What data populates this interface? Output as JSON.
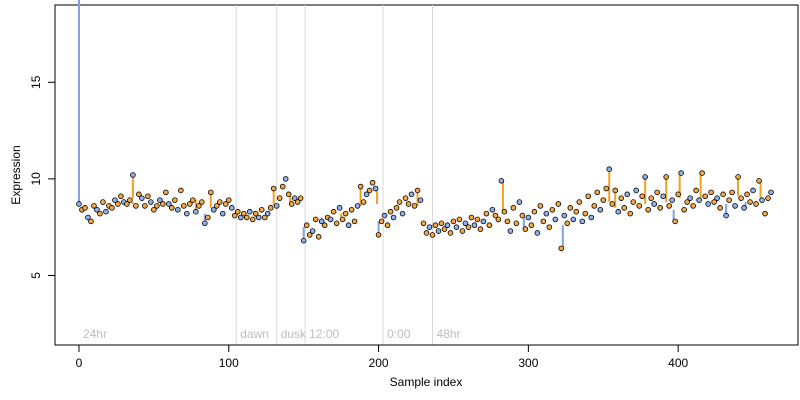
{
  "chart_data": {
    "type": "scatter",
    "title": "",
    "xlabel": "Sample index",
    "ylabel": "Expression",
    "xlim": [
      -16,
      480
    ],
    "ylim": [
      1.4,
      19.0
    ],
    "xticks": [
      0,
      100,
      200,
      300,
      400
    ],
    "yticks": [
      5,
      10,
      15
    ],
    "grid": false,
    "legend": "none",
    "colors": {
      "point_fill_orange": "#f4a742",
      "point_fill_blue": "#8fb0e8",
      "orange_segment": "#f0a020",
      "blue_segment": "#7fa3e0",
      "event_line": "#d9d9d9",
      "event_text": "#bdbdbd"
    },
    "events": [
      {
        "label": "24hr",
        "x": 0
      },
      {
        "label": "dawn",
        "x": 105
      },
      {
        "label": "dusk",
        "x": 132
      },
      {
        "label": "12:00",
        "x": 151
      },
      {
        "label": "0:00",
        "x": 203
      },
      {
        "label": "48hr",
        "x": 236
      }
    ],
    "segments": [
      [
        0,
        8.6,
        36
      ],
      [
        36,
        8.8,
        8.7
      ],
      [
        36,
        10.2,
        9.0
      ],
      [
        78,
        8.9,
        8.3
      ],
      [
        84,
        7.7,
        8.2
      ],
      [
        88,
        9.3,
        8.5
      ],
      [
        118,
        8.2,
        8.0
      ],
      [
        130,
        9.5,
        8.6
      ],
      [
        141,
        9.2,
        8.7
      ],
      [
        150,
        6.8,
        7.5
      ],
      [
        162,
        7.8,
        8.0
      ],
      [
        175,
        8.2,
        8.0
      ],
      [
        188,
        9.6,
        8.6
      ],
      [
        199,
        9.6,
        8.7
      ],
      [
        200,
        7.1,
        7.8
      ],
      [
        226,
        9.4,
        8.6
      ],
      [
        283,
        9.9,
        8.4
      ],
      [
        297,
        7.4,
        8.0
      ],
      [
        323,
        6.4,
        7.6
      ],
      [
        354,
        10.5,
        8.8
      ],
      [
        358,
        9.4,
        8.5
      ],
      [
        378,
        10.1,
        8.7
      ],
      [
        392,
        10.1,
        8.8
      ],
      [
        397,
        7.8,
        8.4
      ],
      [
        401,
        10.3,
        9.0
      ],
      [
        415,
        10.3,
        9.0
      ],
      [
        432,
        8.1,
        8.7
      ],
      [
        440,
        10.1,
        9.1
      ],
      [
        445,
        8.5,
        8.8
      ],
      [
        455,
        9.9,
        9.0
      ]
    ],
    "points": [
      [
        0,
        8.7
      ],
      [
        2,
        8.4
      ],
      [
        4,
        8.5
      ],
      [
        6,
        8.0
      ],
      [
        8,
        7.8
      ],
      [
        10,
        8.6
      ],
      [
        12,
        8.4
      ],
      [
        14,
        8.2
      ],
      [
        16,
        8.8
      ],
      [
        18,
        8.3
      ],
      [
        20,
        8.6
      ],
      [
        22,
        8.5
      ],
      [
        24,
        8.9
      ],
      [
        26,
        8.7
      ],
      [
        28,
        9.1
      ],
      [
        30,
        8.8
      ],
      [
        32,
        8.7
      ],
      [
        34,
        8.9
      ],
      [
        36,
        10.2
      ],
      [
        38,
        8.6
      ],
      [
        40,
        9.2
      ],
      [
        42,
        9.0
      ],
      [
        44,
        8.6
      ],
      [
        46,
        9.1
      ],
      [
        48,
        8.8
      ],
      [
        50,
        8.4
      ],
      [
        52,
        8.6
      ],
      [
        54,
        8.9
      ],
      [
        56,
        8.7
      ],
      [
        58,
        9.3
      ],
      [
        60,
        8.7
      ],
      [
        62,
        8.5
      ],
      [
        64,
        8.9
      ],
      [
        66,
        8.4
      ],
      [
        68,
        9.4
      ],
      [
        70,
        8.6
      ],
      [
        72,
        8.2
      ],
      [
        74,
        8.7
      ],
      [
        76,
        8.9
      ],
      [
        78,
        8.3
      ],
      [
        80,
        8.6
      ],
      [
        82,
        8.8
      ],
      [
        84,
        7.7
      ],
      [
        86,
        8.0
      ],
      [
        88,
        9.3
      ],
      [
        90,
        8.4
      ],
      [
        92,
        8.6
      ],
      [
        94,
        8.8
      ],
      [
        96,
        8.2
      ],
      [
        98,
        8.7
      ],
      [
        100,
        8.9
      ],
      [
        102,
        8.5
      ],
      [
        104,
        8.1
      ],
      [
        106,
        8.3
      ],
      [
        108,
        8.0
      ],
      [
        110,
        8.2
      ],
      [
        112,
        8.0
      ],
      [
        114,
        8.3
      ],
      [
        116,
        7.9
      ],
      [
        118,
        8.2
      ],
      [
        120,
        8.0
      ],
      [
        122,
        8.4
      ],
      [
        124,
        8.0
      ],
      [
        126,
        8.2
      ],
      [
        128,
        8.5
      ],
      [
        130,
        9.5
      ],
      [
        132,
        8.6
      ],
      [
        134,
        9.0
      ],
      [
        136,
        9.6
      ],
      [
        138,
        10.0
      ],
      [
        140,
        9.2
      ],
      [
        142,
        8.7
      ],
      [
        144,
        9.0
      ],
      [
        146,
        8.8
      ],
      [
        148,
        9.0
      ],
      [
        150,
        6.8
      ],
      [
        152,
        7.6
      ],
      [
        154,
        7.1
      ],
      [
        156,
        7.3
      ],
      [
        158,
        7.9
      ],
      [
        160,
        7.0
      ],
      [
        162,
        7.8
      ],
      [
        164,
        7.6
      ],
      [
        166,
        8.0
      ],
      [
        168,
        7.9
      ],
      [
        170,
        8.3
      ],
      [
        172,
        7.7
      ],
      [
        174,
        8.5
      ],
      [
        176,
        7.9
      ],
      [
        178,
        8.2
      ],
      [
        180,
        7.6
      ],
      [
        182,
        8.4
      ],
      [
        184,
        7.8
      ],
      [
        186,
        8.6
      ],
      [
        188,
        9.6
      ],
      [
        190,
        8.8
      ],
      [
        192,
        9.2
      ],
      [
        194,
        9.4
      ],
      [
        196,
        9.8
      ],
      [
        198,
        9.5
      ],
      [
        200,
        7.1
      ],
      [
        202,
        7.8
      ],
      [
        204,
        8.1
      ],
      [
        206,
        7.6
      ],
      [
        208,
        8.3
      ],
      [
        210,
        8.0
      ],
      [
        212,
        8.5
      ],
      [
        214,
        8.8
      ],
      [
        216,
        8.2
      ],
      [
        218,
        9.0
      ],
      [
        220,
        8.7
      ],
      [
        222,
        9.2
      ],
      [
        224,
        8.6
      ],
      [
        226,
        9.4
      ],
      [
        228,
        8.9
      ],
      [
        230,
        7.7
      ],
      [
        232,
        7.2
      ],
      [
        234,
        7.5
      ],
      [
        236,
        7.1
      ],
      [
        238,
        7.6
      ],
      [
        240,
        7.3
      ],
      [
        242,
        7.7
      ],
      [
        244,
        7.4
      ],
      [
        246,
        7.6
      ],
      [
        248,
        7.2
      ],
      [
        250,
        7.8
      ],
      [
        252,
        7.5
      ],
      [
        254,
        7.9
      ],
      [
        256,
        7.3
      ],
      [
        258,
        7.7
      ],
      [
        260,
        7.5
      ],
      [
        262,
        8.0
      ],
      [
        264,
        7.6
      ],
      [
        266,
        7.9
      ],
      [
        268,
        7.4
      ],
      [
        270,
        7.8
      ],
      [
        272,
        8.2
      ],
      [
        274,
        7.6
      ],
      [
        276,
        8.4
      ],
      [
        278,
        8.1
      ],
      [
        280,
        7.9
      ],
      [
        282,
        9.9
      ],
      [
        284,
        8.3
      ],
      [
        286,
        7.8
      ],
      [
        288,
        7.3
      ],
      [
        290,
        8.5
      ],
      [
        292,
        7.7
      ],
      [
        294,
        8.8
      ],
      [
        296,
        8.1
      ],
      [
        298,
        7.4
      ],
      [
        300,
        8.0
      ],
      [
        302,
        7.6
      ],
      [
        304,
        8.3
      ],
      [
        306,
        7.2
      ],
      [
        308,
        8.6
      ],
      [
        310,
        7.8
      ],
      [
        312,
        8.2
      ],
      [
        314,
        7.5
      ],
      [
        316,
        8.4
      ],
      [
        318,
        7.9
      ],
      [
        320,
        8.7
      ],
      [
        322,
        6.4
      ],
      [
        324,
        8.1
      ],
      [
        326,
        7.7
      ],
      [
        328,
        8.5
      ],
      [
        330,
        7.9
      ],
      [
        332,
        8.3
      ],
      [
        334,
        8.8
      ],
      [
        336,
        7.8
      ],
      [
        338,
        8.2
      ],
      [
        340,
        9.1
      ],
      [
        342,
        8.0
      ],
      [
        344,
        8.6
      ],
      [
        346,
        9.3
      ],
      [
        348,
        8.4
      ],
      [
        350,
        8.9
      ],
      [
        352,
        9.5
      ],
      [
        354,
        10.5
      ],
      [
        356,
        8.7
      ],
      [
        358,
        9.4
      ],
      [
        360,
        8.3
      ],
      [
        362,
        9.0
      ],
      [
        364,
        8.5
      ],
      [
        366,
        9.2
      ],
      [
        368,
        8.2
      ],
      [
        370,
        8.8
      ],
      [
        372,
        9.4
      ],
      [
        374,
        8.6
      ],
      [
        376,
        9.1
      ],
      [
        378,
        10.1
      ],
      [
        380,
        8.4
      ],
      [
        382,
        9.0
      ],
      [
        384,
        8.7
      ],
      [
        386,
        9.3
      ],
      [
        388,
        8.5
      ],
      [
        390,
        9.1
      ],
      [
        392,
        10.1
      ],
      [
        394,
        8.6
      ],
      [
        396,
        8.9
      ],
      [
        398,
        7.8
      ],
      [
        400,
        9.2
      ],
      [
        402,
        10.3
      ],
      [
        404,
        8.4
      ],
      [
        406,
        8.8
      ],
      [
        408,
        9.0
      ],
      [
        410,
        8.6
      ],
      [
        412,
        9.4
      ],
      [
        414,
        8.9
      ],
      [
        416,
        10.3
      ],
      [
        418,
        9.1
      ],
      [
        420,
        8.7
      ],
      [
        422,
        9.3
      ],
      [
        424,
        8.8
      ],
      [
        426,
        9.0
      ],
      [
        428,
        8.5
      ],
      [
        430,
        9.2
      ],
      [
        432,
        8.1
      ],
      [
        434,
        8.9
      ],
      [
        436,
        9.3
      ],
      [
        438,
        8.6
      ],
      [
        440,
        10.1
      ],
      [
        442,
        9.0
      ],
      [
        444,
        8.5
      ],
      [
        446,
        9.2
      ],
      [
        448,
        8.8
      ],
      [
        450,
        9.4
      ],
      [
        452,
        8.7
      ],
      [
        454,
        9.9
      ],
      [
        456,
        8.9
      ],
      [
        458,
        8.2
      ],
      [
        460,
        9.0
      ],
      [
        462,
        9.3
      ]
    ]
  }
}
